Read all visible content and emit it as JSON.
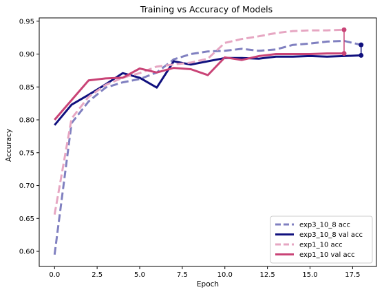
{
  "chart_data": {
    "type": "line",
    "title": "Training vs Accuracy of Models",
    "xlabel": "Epoch",
    "ylabel": "Accuracy",
    "xlim": [
      -0.9,
      18.9
    ],
    "ylim": [
      0.577,
      0.955
    ],
    "xticks": [
      0.0,
      2.5,
      5.0,
      7.5,
      10.0,
      12.5,
      15.0,
      17.5
    ],
    "xtick_labels": [
      "0.0",
      "2.5",
      "5.0",
      "7.5",
      "10.0",
      "12.5",
      "15.0",
      "17.5"
    ],
    "yticks": [
      0.6,
      0.65,
      0.7,
      0.75,
      0.8,
      0.85,
      0.9,
      0.95
    ],
    "ytick_labels": [
      "0.60",
      "0.65",
      "0.70",
      "0.75",
      "0.80",
      "0.85",
      "0.90",
      "0.95"
    ],
    "grid": false,
    "legend_position": "bottom-right",
    "series": [
      {
        "name": "exp3_10_8 acc",
        "color": "#8080c0",
        "style": "dashed",
        "x": [
          0,
          1,
          2,
          3,
          4,
          5,
          6,
          7,
          8,
          9,
          10,
          11,
          12,
          13,
          14,
          15,
          16,
          17,
          18
        ],
        "values": [
          0.595,
          0.795,
          0.828,
          0.849,
          0.857,
          0.862,
          0.872,
          0.892,
          0.9,
          0.904,
          0.905,
          0.908,
          0.905,
          0.907,
          0.914,
          0.916,
          0.919,
          0.92,
          0.914
        ]
      },
      {
        "name": "exp3_10_8 val acc",
        "color": "#10107e",
        "style": "solid",
        "x": [
          0,
          1,
          2,
          3,
          4,
          5,
          6,
          7,
          8,
          9,
          10,
          11,
          12,
          13,
          14,
          15,
          16,
          17,
          18
        ],
        "values": [
          0.792,
          0.823,
          0.838,
          0.854,
          0.871,
          0.864,
          0.849,
          0.889,
          0.884,
          0.889,
          0.894,
          0.894,
          0.893,
          0.896,
          0.896,
          0.897,
          0.896,
          0.897,
          0.898
        ]
      },
      {
        "name": "exp1_10 acc",
        "color": "#e6a6c2",
        "style": "dashed",
        "x": [
          0,
          1,
          2,
          3,
          4,
          5,
          6,
          7,
          8,
          9,
          10,
          11,
          12,
          13,
          14,
          15,
          16,
          17
        ],
        "values": [
          0.656,
          0.802,
          0.835,
          0.853,
          0.864,
          0.871,
          0.881,
          0.884,
          0.887,
          0.893,
          0.917,
          0.923,
          0.927,
          0.932,
          0.935,
          0.936,
          0.936,
          0.937
        ]
      },
      {
        "name": "exp1_10 val acc",
        "color": "#c94376",
        "style": "solid",
        "x": [
          0,
          1,
          2,
          3,
          4,
          5,
          6,
          7,
          8,
          9,
          10,
          11,
          12,
          13,
          14,
          15,
          16,
          17
        ],
        "values": [
          0.8,
          0.83,
          0.86,
          0.863,
          0.864,
          0.878,
          0.872,
          0.879,
          0.877,
          0.868,
          0.895,
          0.891,
          0.897,
          0.9,
          0.9,
          0.9,
          0.901,
          0.901
        ]
      }
    ],
    "markers": [
      {
        "series": "exp3_10_8",
        "x": 18,
        "top": 0.914,
        "bottom": 0.898,
        "color": "#10107e"
      },
      {
        "series": "exp1_10",
        "x": 17,
        "top": 0.937,
        "bottom": 0.901,
        "color": "#c94376"
      }
    ]
  }
}
